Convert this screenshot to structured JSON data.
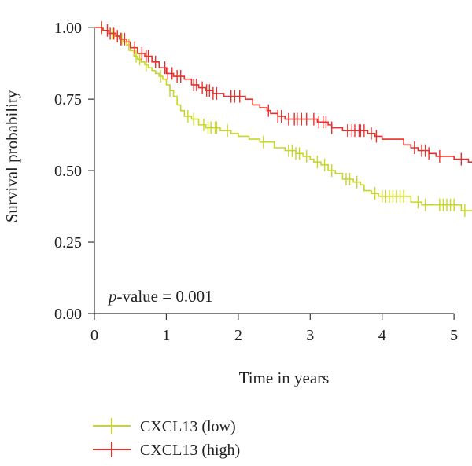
{
  "chart_data": {
    "type": "line",
    "subtype": "kaplan-meier",
    "title": "",
    "xlabel": "Time in years",
    "ylabel": "Survival probability",
    "xlim": [
      0,
      5.25
    ],
    "ylim": [
      0,
      1.05
    ],
    "x_ticks": [
      0,
      1,
      2,
      3,
      4,
      5
    ],
    "x_tick_labels": [
      "0",
      "1",
      "2",
      "3",
      "4",
      "5"
    ],
    "y_ticks": [
      0,
      0.25,
      0.5,
      0.75,
      1.0
    ],
    "y_tick_labels": [
      "0.00",
      "0.25",
      "0.50",
      "0.75",
      "1.00"
    ],
    "grid": false,
    "legend_position": "bottom-left",
    "annotation": {
      "italic_part": "p",
      "text": "-value = 0.001"
    },
    "series": [
      {
        "name": "CXCL13 (low)",
        "color": "#c8d62a",
        "steps": [
          [
            0,
            1.0
          ],
          [
            0.12,
            0.99
          ],
          [
            0.2,
            0.98
          ],
          [
            0.28,
            0.97
          ],
          [
            0.35,
            0.96
          ],
          [
            0.4,
            0.95
          ],
          [
            0.45,
            0.94
          ],
          [
            0.5,
            0.92
          ],
          [
            0.55,
            0.9
          ],
          [
            0.6,
            0.89
          ],
          [
            0.65,
            0.88
          ],
          [
            0.7,
            0.87
          ],
          [
            0.75,
            0.86
          ],
          [
            0.8,
            0.85
          ],
          [
            0.85,
            0.84
          ],
          [
            0.9,
            0.83
          ],
          [
            0.95,
            0.82
          ],
          [
            1.0,
            0.8
          ],
          [
            1.05,
            0.78
          ],
          [
            1.1,
            0.76
          ],
          [
            1.15,
            0.73
          ],
          [
            1.2,
            0.71
          ],
          [
            1.25,
            0.69
          ],
          [
            1.35,
            0.68
          ],
          [
            1.45,
            0.66
          ],
          [
            1.55,
            0.65
          ],
          [
            1.75,
            0.64
          ],
          [
            1.9,
            0.63
          ],
          [
            2.0,
            0.62
          ],
          [
            2.15,
            0.61
          ],
          [
            2.3,
            0.6
          ],
          [
            2.5,
            0.58
          ],
          [
            2.65,
            0.57
          ],
          [
            2.8,
            0.56
          ],
          [
            2.9,
            0.55
          ],
          [
            3.0,
            0.54
          ],
          [
            3.05,
            0.53
          ],
          [
            3.15,
            0.52
          ],
          [
            3.25,
            0.5
          ],
          [
            3.35,
            0.49
          ],
          [
            3.45,
            0.47
          ],
          [
            3.6,
            0.46
          ],
          [
            3.7,
            0.45
          ],
          [
            3.75,
            0.43
          ],
          [
            3.85,
            0.42
          ],
          [
            3.95,
            0.41
          ],
          [
            4.4,
            0.39
          ],
          [
            4.55,
            0.38
          ],
          [
            5.1,
            0.36
          ]
        ],
        "censor_x": [
          0.1,
          0.25,
          0.38,
          0.48,
          0.58,
          0.63,
          0.72,
          0.92,
          1.05,
          1.3,
          1.38,
          1.52,
          1.58,
          1.62,
          1.68,
          1.7,
          1.85,
          2.35,
          2.7,
          2.75,
          2.8,
          2.85,
          2.95,
          3.1,
          3.2,
          3.3,
          3.5,
          3.55,
          3.65,
          3.9,
          4.0,
          4.05,
          4.1,
          4.15,
          4.2,
          4.25,
          4.3,
          4.5,
          4.6,
          4.8,
          4.85,
          4.9,
          4.95,
          5.0,
          5.15
        ]
      },
      {
        "name": "CXCL13 (high)",
        "color": "#e5322d",
        "steps": [
          [
            0,
            1.0
          ],
          [
            0.12,
            0.99
          ],
          [
            0.2,
            0.98
          ],
          [
            0.3,
            0.97
          ],
          [
            0.35,
            0.96
          ],
          [
            0.45,
            0.95
          ],
          [
            0.5,
            0.93
          ],
          [
            0.6,
            0.91
          ],
          [
            0.7,
            0.9
          ],
          [
            0.8,
            0.88
          ],
          [
            0.9,
            0.86
          ],
          [
            1.0,
            0.84
          ],
          [
            1.1,
            0.83
          ],
          [
            1.25,
            0.82
          ],
          [
            1.35,
            0.8
          ],
          [
            1.45,
            0.79
          ],
          [
            1.55,
            0.78
          ],
          [
            1.65,
            0.77
          ],
          [
            1.8,
            0.76
          ],
          [
            2.1,
            0.75
          ],
          [
            2.2,
            0.73
          ],
          [
            2.3,
            0.72
          ],
          [
            2.4,
            0.71
          ],
          [
            2.45,
            0.7
          ],
          [
            2.55,
            0.69
          ],
          [
            2.65,
            0.68
          ],
          [
            3.1,
            0.67
          ],
          [
            3.25,
            0.66
          ],
          [
            3.3,
            0.65
          ],
          [
            3.45,
            0.64
          ],
          [
            3.8,
            0.63
          ],
          [
            3.9,
            0.62
          ],
          [
            4.0,
            0.61
          ],
          [
            4.3,
            0.59
          ],
          [
            4.4,
            0.58
          ],
          [
            4.5,
            0.57
          ],
          [
            4.65,
            0.56
          ],
          [
            4.75,
            0.55
          ],
          [
            5.0,
            0.54
          ],
          [
            5.2,
            0.53
          ]
        ],
        "censor_x": [
          0.1,
          0.18,
          0.22,
          0.27,
          0.32,
          0.37,
          0.42,
          0.56,
          0.66,
          0.72,
          0.75,
          0.85,
          0.98,
          1.02,
          1.08,
          1.15,
          1.2,
          1.38,
          1.42,
          1.5,
          1.56,
          1.6,
          1.65,
          1.7,
          1.9,
          1.95,
          2.02,
          2.42,
          2.55,
          2.6,
          2.7,
          2.78,
          2.82,
          2.88,
          2.95,
          3.05,
          3.12,
          3.18,
          3.22,
          3.3,
          3.52,
          3.58,
          3.62,
          3.68,
          3.7,
          3.75,
          3.85,
          3.92,
          4.45,
          4.55,
          4.6,
          4.65,
          4.8,
          5.1
        ]
      }
    ]
  }
}
